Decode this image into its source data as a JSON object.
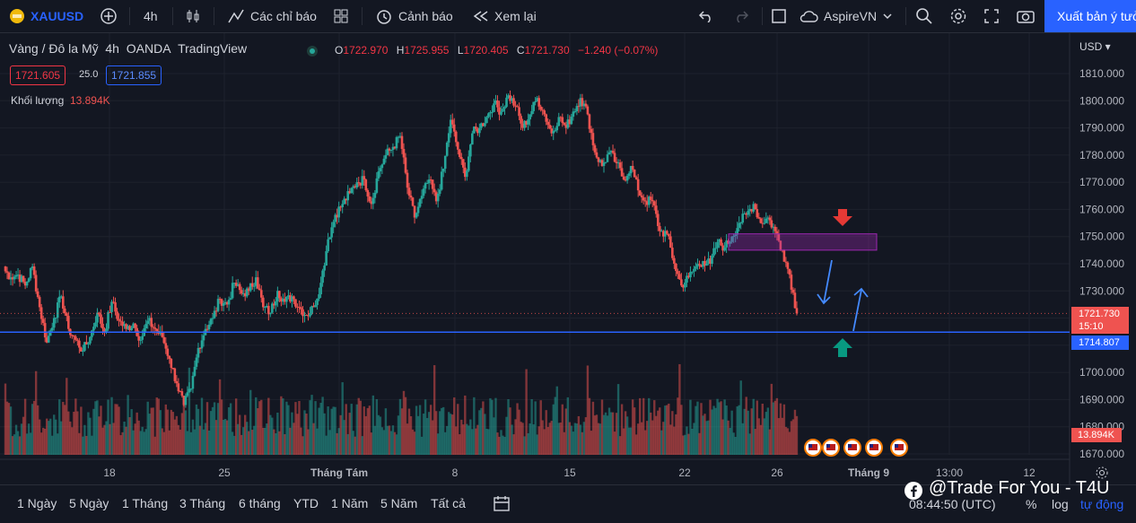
{
  "toolbar": {
    "symbol": "XAUUSD",
    "interval": "4h",
    "indicators": "Các chỉ báo",
    "alerts": "Cảnh báo",
    "replay": "Xem lại",
    "layout_name": "AspireVN",
    "publish": "Xuất bản ý tưởng"
  },
  "legend": {
    "title": "Vàng / Đô la Mỹ",
    "interval": "4h",
    "exchange": "OANDA",
    "source": "TradingView",
    "o_label": "O",
    "o": "1722.970",
    "h_label": "H",
    "h": "1725.955",
    "l_label": "L",
    "l": "1720.405",
    "c_label": "C",
    "c": "1721.730",
    "change": "−1.240 (−0.07%)",
    "bid": "1721.605",
    "spread": "25.0",
    "ask": "1721.855",
    "volume_label": "Khối lượng",
    "volume_value": "13.894K"
  },
  "price_axis": {
    "currency": "USD",
    "last_price": "1721.730",
    "countdown": "15:10",
    "support_price": "1714.807",
    "volume_tag": "13.894K"
  },
  "bottom": {
    "ranges": [
      "1 Ngày",
      "5 Ngày",
      "1 Tháng",
      "3 Tháng",
      "6 tháng",
      "YTD",
      "1 Năm",
      "5 Năm",
      "Tất cả"
    ],
    "time": "08:44:50 (UTC)",
    "percent": "%",
    "log": "log",
    "auto": "tự động",
    "watermark": "@Trade For You - T4U"
  },
  "colors": {
    "up": "#26a69a",
    "down": "#ef5350",
    "accent": "#2962ff",
    "support_line": "#2962ff",
    "zone": "#9c27b0",
    "arrow_down": "#e53935",
    "arrow_up": "#089981"
  },
  "chart_data": {
    "type": "candlestick",
    "ylim": [
      1666,
      1816
    ],
    "y_ticks": [
      1670,
      1680,
      1690,
      1700,
      1710,
      1720,
      1730,
      1740,
      1750,
      1760,
      1770,
      1780,
      1790,
      1800,
      1810
    ],
    "x_ticks": [
      "18",
      "25",
      "Tháng Tám",
      "8",
      "15",
      "22",
      "26",
      "Tháng 9",
      "13:00",
      "12"
    ],
    "support_level": 1714.807,
    "resistance_zone": [
      1745,
      1751
    ],
    "close_path": [
      1738,
      1735,
      1736,
      1732,
      1739,
      1724,
      1711,
      1720,
      1728,
      1716,
      1712,
      1708,
      1713,
      1722,
      1715,
      1726,
      1719,
      1716,
      1718,
      1712,
      1719,
      1716,
      1713,
      1705,
      1696,
      1688,
      1694,
      1709,
      1716,
      1720,
      1727,
      1725,
      1733,
      1729,
      1730,
      1735,
      1724,
      1722,
      1730,
      1726,
      1728,
      1724,
      1721,
      1724,
      1733,
      1749,
      1758,
      1762,
      1766,
      1770,
      1771,
      1762,
      1774,
      1780,
      1783,
      1787,
      1768,
      1757,
      1765,
      1771,
      1763,
      1775,
      1793,
      1782,
      1772,
      1788,
      1790,
      1794,
      1799,
      1796,
      1802,
      1798,
      1790,
      1795,
      1801,
      1795,
      1788,
      1794,
      1790,
      1796,
      1801,
      1795,
      1781,
      1776,
      1781,
      1777,
      1771,
      1776,
      1767,
      1763,
      1763,
      1752,
      1751,
      1740,
      1732,
      1735,
      1739,
      1741,
      1740,
      1748,
      1746,
      1750,
      1755,
      1758,
      1762,
      1755,
      1757,
      1752,
      1745,
      1736,
      1721.73
    ],
    "volume": {
      "label": "Khối lượng",
      "last": 13894
    }
  }
}
